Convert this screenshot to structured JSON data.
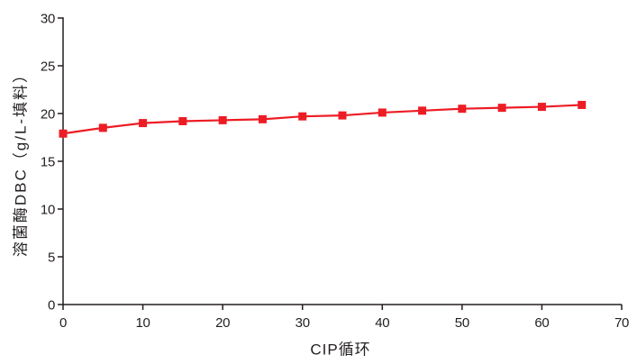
{
  "chart_data": {
    "type": "line",
    "x": [
      0,
      5,
      10,
      15,
      20,
      25,
      30,
      35,
      40,
      45,
      50,
      55,
      60,
      65
    ],
    "y": [
      17.9,
      18.5,
      19.0,
      19.2,
      19.3,
      19.4,
      19.7,
      19.8,
      20.1,
      20.3,
      20.5,
      20.6,
      20.7,
      20.9
    ],
    "xlabel": "CIP循环",
    "ylabel": "溶菌酶DBC（g/L-填料）",
    "xlim": [
      0,
      70
    ],
    "ylim": [
      0,
      30
    ],
    "xticks": [
      0,
      10,
      20,
      30,
      40,
      50,
      60,
      70
    ],
    "yticks": [
      0,
      5,
      10,
      15,
      20,
      25,
      30
    ],
    "grid": false,
    "legend": false,
    "marker": "square",
    "line_color": "#ED1C24",
    "axis_color": "#231F20",
    "background_color": "#FFFFFF"
  }
}
